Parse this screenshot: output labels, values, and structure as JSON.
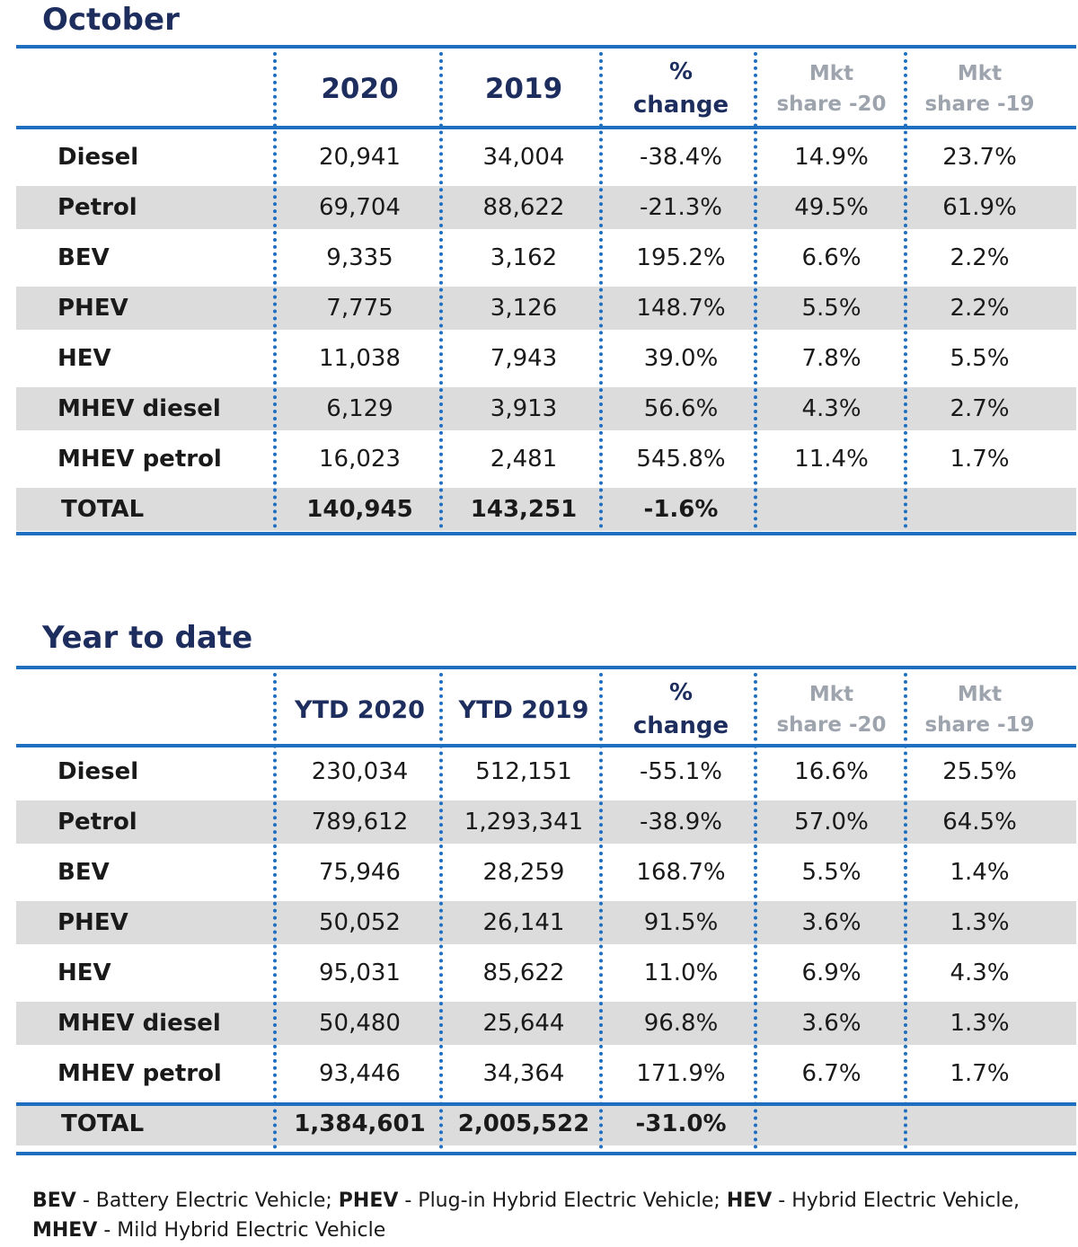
{
  "october": {
    "title": "October",
    "headers": {
      "year1": "2020",
      "year2": "2019",
      "pct_line1": "%",
      "pct_line2": "change",
      "share1_line1": "Mkt",
      "share1_line2": "share -20",
      "share2_line1": "Mkt",
      "share2_line2": "share -19"
    },
    "rows": [
      {
        "label": "Diesel",
        "v1": "20,941",
        "v2": "34,004",
        "pct": "-38.4%",
        "s1": "14.9%",
        "s2": "23.7%"
      },
      {
        "label": "Petrol",
        "v1": "69,704",
        "v2": "88,622",
        "pct": "-21.3%",
        "s1": "49.5%",
        "s2": "61.9%"
      },
      {
        "label": "BEV",
        "v1": "9,335",
        "v2": "3,162",
        "pct": "195.2%",
        "s1": "6.6%",
        "s2": "2.2%"
      },
      {
        "label": "PHEV",
        "v1": "7,775",
        "v2": "3,126",
        "pct": "148.7%",
        "s1": "5.5%",
        "s2": "2.2%"
      },
      {
        "label": "HEV",
        "v1": "11,038",
        "v2": "7,943",
        "pct": "39.0%",
        "s1": "7.8%",
        "s2": "5.5%"
      },
      {
        "label": "MHEV diesel",
        "v1": "6,129",
        "v2": "3,913",
        "pct": "56.6%",
        "s1": "4.3%",
        "s2": "2.7%"
      },
      {
        "label": "MHEV petrol",
        "v1": "16,023",
        "v2": "2,481",
        "pct": "545.8%",
        "s1": "11.4%",
        "s2": "1.7%"
      }
    ],
    "total": {
      "label": "TOTAL",
      "v1": "140,945",
      "v2": "143,251",
      "pct": "-1.6%"
    }
  },
  "ytd": {
    "title": "Year to date",
    "headers": {
      "year1": "YTD 2020",
      "year2": "YTD 2019",
      "pct_line1": "%",
      "pct_line2": "change",
      "share1_line1": "Mkt",
      "share1_line2": "share -20",
      "share2_line1": "Mkt",
      "share2_line2": "share -19"
    },
    "rows": [
      {
        "label": "Diesel",
        "v1": "230,034",
        "v2": "512,151",
        "pct": "-55.1%",
        "s1": "16.6%",
        "s2": "25.5%"
      },
      {
        "label": "Petrol",
        "v1": "789,612",
        "v2": "1,293,341",
        "pct": "-38.9%",
        "s1": "57.0%",
        "s2": "64.5%"
      },
      {
        "label": "BEV",
        "v1": "75,946",
        "v2": "28,259",
        "pct": "168.7%",
        "s1": "5.5%",
        "s2": "1.4%"
      },
      {
        "label": "PHEV",
        "v1": "50,052",
        "v2": "26,141",
        "pct": "91.5%",
        "s1": "3.6%",
        "s2": "1.3%"
      },
      {
        "label": "HEV",
        "v1": "95,031",
        "v2": "85,622",
        "pct": "11.0%",
        "s1": "6.9%",
        "s2": "4.3%"
      },
      {
        "label": "MHEV diesel",
        "v1": "50,480",
        "v2": "25,644",
        "pct": "96.8%",
        "s1": "3.6%",
        "s2": "1.3%"
      },
      {
        "label": "MHEV petrol",
        "v1": "93,446",
        "v2": "34,364",
        "pct": "171.9%",
        "s1": "6.7%",
        "s2": "1.7%"
      }
    ],
    "total": {
      "label": "TOTAL",
      "v1": "1,384,601",
      "v2": "2,005,522",
      "pct": "-31.0%"
    }
  },
  "legend": {
    "bev_abbr": "BEV",
    "bev_text": " - Battery Electric Vehicle; ",
    "phev_abbr": "PHEV",
    "phev_text": " - Plug-in Hybrid Electric Vehicle; ",
    "hev_abbr": "HEV",
    "hev_text": " - Hybrid Electric Vehicle,",
    "mhev_abbr": "MHEV",
    "mhev_text": " - Mild Hybrid Electric Vehicle"
  },
  "colors": {
    "title": "#1d2d5e",
    "rule": "#1f6fc0",
    "shade": "#dcdcdc",
    "grey_header": "#9ea4ad"
  }
}
